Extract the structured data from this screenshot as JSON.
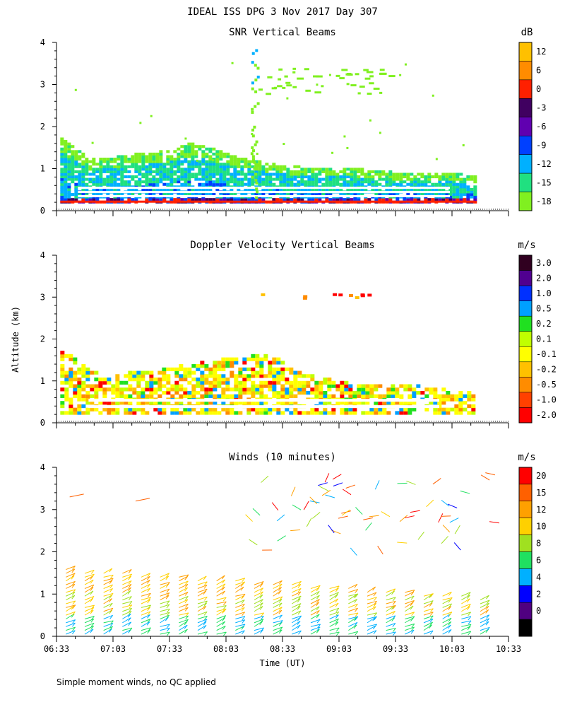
{
  "title": "IDEAL ISS DPG    3 Nov 2017 Day 307",
  "ylabel": "Altitude (km)",
  "xlabel": "Time (UT)",
  "footnote": "Simple moment winds, no QC applied",
  "x_ticks": [
    "06:33",
    "07:03",
    "07:33",
    "08:03",
    "08:33",
    "09:03",
    "09:33",
    "10:03",
    "10:33"
  ],
  "y_ticks": [
    "0",
    "1",
    "2",
    "3",
    "4"
  ],
  "chart_data": [
    {
      "type": "heatmap",
      "title": "SNR Vertical Beams",
      "unit": "dB",
      "xlim": [
        "06:33",
        "10:33"
      ],
      "ylim": [
        0,
        4
      ],
      "colorbar": {
        "labels": [
          "12",
          "6",
          "0",
          "-3",
          "-6",
          "-9",
          "-12",
          "-15",
          "-18"
        ],
        "colors": [
          "#ffc000",
          "#ff8c00",
          "#ff2000",
          "#400060",
          "#6000b0",
          "#0040ff",
          "#00b0ff",
          "#20e080",
          "#80f020"
        ]
      },
      "features": {
        "layer_top_km": [
          1.7,
          1.2,
          1.3,
          1.4,
          1.6,
          1.3,
          1.1,
          1.0,
          1.0,
          0.9,
          0.9,
          0.8
        ],
        "layer_top_times": [
          "06:35",
          "06:50",
          "07:10",
          "07:30",
          "07:45",
          "08:05",
          "08:25",
          "08:45",
          "09:05",
          "09:30",
          "09:55",
          "10:15"
        ],
        "upper_echo_km": 3.0
      }
    },
    {
      "type": "heatmap",
      "title": "Doppler Velocity Vertical Beams",
      "unit": "m/s",
      "xlim": [
        "06:33",
        "10:33"
      ],
      "ylim": [
        0,
        4
      ],
      "colorbar": {
        "labels": [
          "3.0",
          "2.0",
          "1.0",
          "0.5",
          "0.2",
          "0.1",
          "-0.1",
          "-0.2",
          "-0.5",
          "-1.0",
          "-2.0"
        ],
        "colors": [
          "#300020",
          "#500090",
          "#0030ff",
          "#00a0ff",
          "#20e020",
          "#c0ff00",
          "#ffff00",
          "#ffc000",
          "#ff8c00",
          "#ff4000",
          "#ff0000"
        ]
      }
    },
    {
      "type": "scatter",
      "title": "Winds (10 minutes)",
      "unit": "m/s",
      "xlim": [
        "06:33",
        "10:33"
      ],
      "ylim": [
        0,
        4
      ],
      "colorbar": {
        "labels": [
          "20",
          "15",
          "12",
          "10",
          "8",
          "6",
          "4",
          "2",
          "0"
        ],
        "colors": [
          "#ff0000",
          "#ff6000",
          "#ffa000",
          "#ffd000",
          "#a0e020",
          "#20e060",
          "#00b0ff",
          "#0000ff",
          "#500080",
          "#000000"
        ]
      },
      "profile_times": [
        "06:38",
        "06:48",
        "06:58",
        "07:08",
        "07:18",
        "07:28",
        "07:38",
        "07:48",
        "07:58",
        "08:08",
        "08:18",
        "08:28",
        "08:38",
        "08:48",
        "08:58",
        "09:08",
        "09:18",
        "09:28",
        "09:38",
        "09:48",
        "09:58",
        "10:08",
        "10:18"
      ]
    }
  ]
}
